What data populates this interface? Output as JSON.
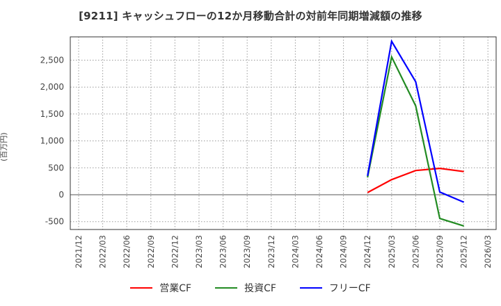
{
  "chart_data": {
    "type": "line",
    "title": "[9211]  キャッシュフローの12か月移動合計の対前年同期増減額の推移",
    "xlabel": "",
    "ylabel": "(百万円)",
    "ylim": [
      -650,
      2950
    ],
    "yticks": [
      -500,
      0,
      500,
      1000,
      1500,
      2000,
      2500
    ],
    "ytick_labels": [
      "-500",
      "0",
      "500",
      "1,000",
      "1,500",
      "2,000",
      "2,500"
    ],
    "categories": [
      "2021/12",
      "2022/03",
      "2022/06",
      "2022/09",
      "2022/12",
      "2023/03",
      "2023/06",
      "2023/09",
      "2023/12",
      "2024/03",
      "2024/06",
      "2024/09",
      "2024/12",
      "2025/03",
      "2025/06",
      "2025/09",
      "2025/12",
      "2026/03"
    ],
    "grid": true,
    "legend_position": "bottom",
    "series": [
      {
        "name": "営業CF",
        "color": "#ff0000",
        "x": [
          "2024/12",
          "2025/03",
          "2025/06",
          "2025/09",
          "2025/12"
        ],
        "values": [
          40,
          280,
          450,
          490,
          430
        ]
      },
      {
        "name": "投資CF",
        "color": "#228b22",
        "x": [
          "2024/12",
          "2025/03",
          "2025/06",
          "2025/09",
          "2025/12"
        ],
        "values": [
          320,
          2560,
          1650,
          -440,
          -580
        ]
      },
      {
        "name": "フリーCF",
        "color": "#0000ff",
        "x": [
          "2024/12",
          "2025/03",
          "2025/06",
          "2025/09",
          "2025/12"
        ],
        "values": [
          350,
          2850,
          2100,
          50,
          -140
        ]
      }
    ]
  },
  "legend": {
    "items": [
      {
        "label": "営業CF",
        "color": "#ff0000"
      },
      {
        "label": "投資CF",
        "color": "#228b22"
      },
      {
        "label": "フリーCF",
        "color": "#0000ff"
      }
    ]
  }
}
